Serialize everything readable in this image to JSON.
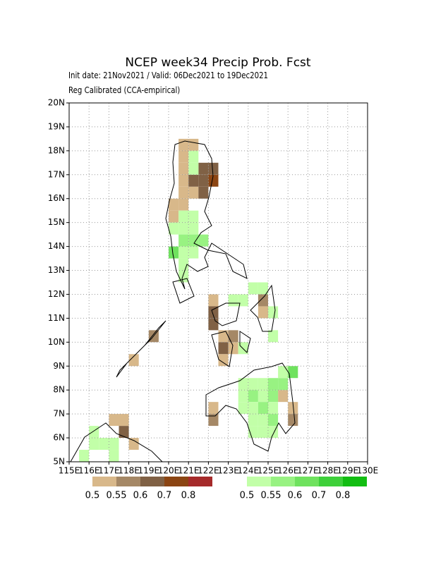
{
  "header": {
    "title": "NCEP week34 Precip Prob. Fcst",
    "subtitle": "Init date: 21Nov2021 / Valid: 06Dec2021 to 19Dec2021",
    "note": "Reg Calibrated (CCA-empirical)"
  },
  "map": {
    "xlim": [
      115,
      130
    ],
    "ylim": [
      5,
      20
    ],
    "xticks": [
      {
        "value": 115,
        "label": "115E"
      },
      {
        "value": 116,
        "label": "116E"
      },
      {
        "value": 117,
        "label": "117E"
      },
      {
        "value": 118,
        "label": "118E"
      },
      {
        "value": 119,
        "label": "119E"
      },
      {
        "value": 120,
        "label": "120E"
      },
      {
        "value": 121,
        "label": "121E"
      },
      {
        "value": 122,
        "label": "122E"
      },
      {
        "value": 123,
        "label": "123E"
      },
      {
        "value": 124,
        "label": "124E"
      },
      {
        "value": 125,
        "label": "125E"
      },
      {
        "value": 126,
        "label": "126E"
      },
      {
        "value": 127,
        "label": "127E"
      },
      {
        "value": 128,
        "label": "128E"
      },
      {
        "value": 129,
        "label": "129E"
      },
      {
        "value": 130,
        "label": "130E"
      }
    ],
    "yticks": [
      {
        "value": 5,
        "label": "5N"
      },
      {
        "value": 6,
        "label": "6N"
      },
      {
        "value": 7,
        "label": "7N"
      },
      {
        "value": 8,
        "label": "8N"
      },
      {
        "value": 9,
        "label": "9N"
      },
      {
        "value": 10,
        "label": "10N"
      },
      {
        "value": 11,
        "label": "11N"
      },
      {
        "value": 12,
        "label": "12N"
      },
      {
        "value": 13,
        "label": "13N"
      },
      {
        "value": 14,
        "label": "14N"
      },
      {
        "value": 15,
        "label": "15N"
      },
      {
        "value": 16,
        "label": "16N"
      },
      {
        "value": 17,
        "label": "17N"
      },
      {
        "value": 18,
        "label": "18N"
      },
      {
        "value": 19,
        "label": "19N"
      },
      {
        "value": 20,
        "label": "20N"
      }
    ],
    "grid": true,
    "dry_cells": [
      [
        120.5,
        18,
        0.5
      ],
      [
        121,
        18,
        0.5
      ],
      [
        120.5,
        17.5,
        0.5
      ],
      [
        120.5,
        17,
        0.5
      ],
      [
        120.5,
        16.5,
        0.5
      ],
      [
        120.5,
        16,
        0.5
      ],
      [
        121,
        16,
        0.5
      ],
      [
        120,
        15.5,
        0.5
      ],
      [
        120.5,
        15.5,
        0.5
      ],
      [
        120,
        15,
        0.5
      ],
      [
        121.5,
        17,
        0.6
      ],
      [
        122,
        17,
        0.6
      ],
      [
        121,
        16.5,
        0.6
      ],
      [
        121.5,
        16.5,
        0.6
      ],
      [
        121.5,
        16,
        0.6
      ],
      [
        122,
        16.5,
        0.7
      ],
      [
        122,
        11.5,
        0.5
      ],
      [
        122,
        11,
        0.6
      ],
      [
        122,
        10.5,
        0.6
      ],
      [
        122.5,
        10,
        0.5
      ],
      [
        122.5,
        9.5,
        0.6
      ],
      [
        123,
        10,
        0.55
      ],
      [
        123,
        9.5,
        0.5
      ],
      [
        122.5,
        9,
        0.5
      ],
      [
        124.5,
        11,
        0.5
      ],
      [
        124.5,
        11.5,
        0.55
      ],
      [
        125.5,
        7.5,
        0.5
      ],
      [
        126,
        7,
        0.5
      ],
      [
        126,
        6.5,
        0.55
      ],
      [
        122,
        7,
        0.5
      ],
      [
        122,
        6.5,
        0.55
      ],
      [
        118,
        9,
        0.5
      ],
      [
        119,
        10,
        0.55
      ],
      [
        117.5,
        6,
        0.6
      ],
      [
        117,
        6.5,
        0.5
      ],
      [
        117.5,
        6.5,
        0.5
      ],
      [
        118,
        5.5,
        0.5
      ]
    ],
    "wet_cells": [
      [
        121,
        17.5,
        0.5
      ],
      [
        121,
        17,
        0.5
      ],
      [
        120,
        14.5,
        0.5
      ],
      [
        120.5,
        14.5,
        0.5
      ],
      [
        120.5,
        15,
        0.5
      ],
      [
        121,
        15,
        0.5
      ],
      [
        121,
        14.5,
        0.5
      ],
      [
        120.5,
        14,
        0.55
      ],
      [
        121,
        14,
        0.55
      ],
      [
        121.5,
        14,
        0.55
      ],
      [
        120,
        13.5,
        0.6
      ],
      [
        120.5,
        13.5,
        0.5
      ],
      [
        121,
        13.5,
        0.5
      ],
      [
        120.5,
        13,
        0.5
      ],
      [
        120.5,
        12.5,
        0.5
      ],
      [
        123,
        11.5,
        0.5
      ],
      [
        123.5,
        11.5,
        0.5
      ],
      [
        124,
        12,
        0.5
      ],
      [
        124.5,
        12,
        0.5
      ],
      [
        125,
        11,
        0.5
      ],
      [
        125,
        10,
        0.5
      ],
      [
        123.5,
        9.5,
        0.5
      ],
      [
        123.5,
        8,
        0.5
      ],
      [
        124,
        8,
        0.5
      ],
      [
        124.5,
        8,
        0.5
      ],
      [
        125,
        8,
        0.55
      ],
      [
        125.5,
        8,
        0.55
      ],
      [
        123.5,
        7.5,
        0.5
      ],
      [
        124,
        7.5,
        0.55
      ],
      [
        124.5,
        7.5,
        0.5
      ],
      [
        125,
        7.5,
        0.55
      ],
      [
        123.5,
        7,
        0.5
      ],
      [
        124,
        7,
        0.5
      ],
      [
        124.5,
        7,
        0.55
      ],
      [
        125,
        7,
        0.5
      ],
      [
        124,
        6.5,
        0.5
      ],
      [
        124.5,
        6.5,
        0.5
      ],
      [
        125,
        6.5,
        0.55
      ],
      [
        124,
        6,
        0.5
      ],
      [
        124.5,
        6,
        0.5
      ],
      [
        125,
        6,
        0.5
      ],
      [
        125.5,
        8.5,
        0.5
      ],
      [
        126,
        8.5,
        0.6
      ],
      [
        116.5,
        5.5,
        0.5
      ],
      [
        117,
        5.5,
        0.5
      ],
      [
        116,
        5.5,
        0.5
      ],
      [
        117,
        5,
        0.5
      ],
      [
        116,
        6,
        0.5
      ],
      [
        115.5,
        5,
        0.5
      ]
    ]
  },
  "legend": {
    "dry": {
      "levels": [
        0.5,
        0.55,
        0.6,
        0.7,
        0.8
      ],
      "colors": [
        "#d8b88a",
        "#a58866",
        "#806145",
        "#8b4513",
        "#a52a2a"
      ]
    },
    "wet": {
      "levels": [
        0.5,
        0.55,
        0.6,
        0.7,
        0.8
      ],
      "colors": [
        "#c2ffa8",
        "#98f282",
        "#6fe25e",
        "#3ed03a",
        "#12bd12"
      ]
    }
  }
}
